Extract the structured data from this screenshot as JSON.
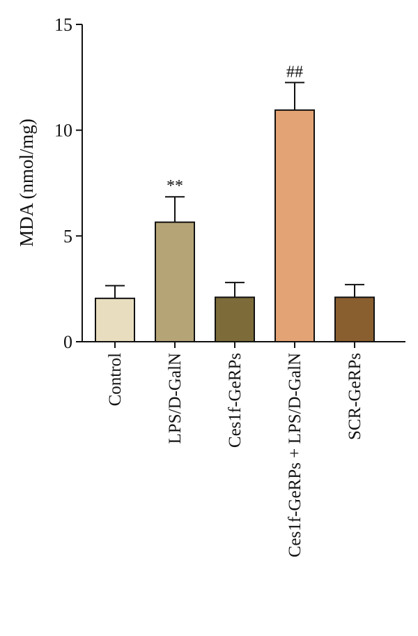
{
  "chart_data": {
    "type": "bar",
    "title": "",
    "xlabel": "",
    "ylabel": "MDA (nmol/mg)",
    "ylim": [
      0,
      15
    ],
    "yticks": [
      0,
      5,
      10,
      15
    ],
    "grid": false,
    "categories": [
      "Control",
      "LPS/D-GalN",
      "Ces1f-GeRPs",
      "Ces1f-GeRPs + LPS/D-GalN",
      "SCR-GeRPs"
    ],
    "values": [
      2.05,
      5.65,
      2.1,
      10.95,
      2.1
    ],
    "errors": [
      0.6,
      1.2,
      0.7,
      1.3,
      0.6
    ],
    "annotations": [
      "",
      "**",
      "",
      "##",
      ""
    ],
    "colors": [
      "#E8DDBE",
      "#B5A576",
      "#7D6C3A",
      "#E4A374",
      "#8A5F30"
    ]
  }
}
